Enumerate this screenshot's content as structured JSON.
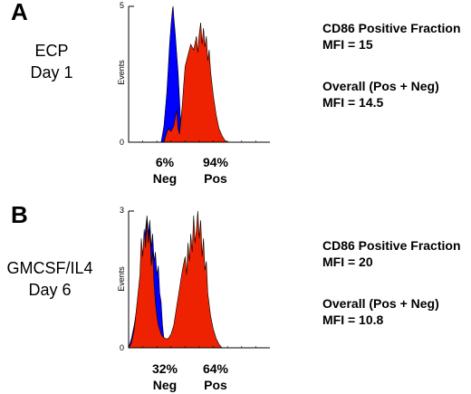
{
  "panels": [
    {
      "letter": "A",
      "sample_line1": "ECP",
      "sample_line2": "Day 1",
      "neg_pct": "6%",
      "neg_label": "Neg",
      "pos_pct": "94%",
      "pos_label": "Pos",
      "stat1_title": "CD86 Positive Fraction",
      "stat1_value": "MFI = 15",
      "stat2_title": "Overall (Pos + Neg)",
      "stat2_value": "MFI = 14.5"
    },
    {
      "letter": "B",
      "sample_line1": "GMCSF/IL4",
      "sample_line2": "Day 6",
      "neg_pct": "32%",
      "neg_label": "Neg",
      "pos_pct": "64%",
      "pos_label": "Pos",
      "stat1_title": "CD86 Positive Fraction",
      "stat1_value": "MFI = 20",
      "stat2_title": "Overall (Pos + Neg)",
      "stat2_value": "MFI = 10.8"
    }
  ],
  "chart_data": [
    {
      "type": "area",
      "ylabel": "Events",
      "yticks": [
        "0",
        "5"
      ],
      "ylim": [
        0,
        5
      ],
      "xlim": [
        0,
        100
      ],
      "series": [
        {
          "color": "#0000ff",
          "points": [
            [
              23,
              0
            ],
            [
              25,
              0.6
            ],
            [
              27,
              1.8
            ],
            [
              28,
              2.7
            ],
            [
              29,
              3.6
            ],
            [
              30,
              4.3
            ],
            [
              31,
              4.9
            ],
            [
              31.5,
              5
            ],
            [
              32,
              4.6
            ],
            [
              33,
              4.0
            ],
            [
              34,
              3.3
            ],
            [
              35,
              2.6
            ],
            [
              36,
              1.6
            ],
            [
              37,
              0.5
            ],
            [
              37.5,
              0
            ]
          ]
        },
        {
          "color": "#ee2200",
          "points": [
            [
              25,
              0
            ],
            [
              26,
              0.2
            ],
            [
              28,
              0.5
            ],
            [
              30,
              0.4
            ],
            [
              32,
              0.6
            ],
            [
              34,
              1.2
            ],
            [
              35,
              0.5
            ],
            [
              36,
              0.3
            ],
            [
              37,
              0.8
            ],
            [
              38,
              1.4
            ],
            [
              39,
              2.1
            ],
            [
              40,
              2.8
            ],
            [
              42,
              3.2
            ],
            [
              44,
              3.6
            ],
            [
              46,
              3.4
            ],
            [
              48,
              3.9
            ],
            [
              49,
              3.3
            ],
            [
              50,
              4.0
            ],
            [
              51,
              4.4
            ],
            [
              52,
              3.6
            ],
            [
              53,
              4.2
            ],
            [
              54,
              3.5
            ],
            [
              55,
              3.9
            ],
            [
              56,
              3.0
            ],
            [
              57,
              3.4
            ],
            [
              58,
              2.6
            ],
            [
              60,
              1.7
            ],
            [
              62,
              1.0
            ],
            [
              64,
              0.5
            ],
            [
              66,
              0.25
            ],
            [
              68,
              0.08
            ],
            [
              70,
              0
            ]
          ]
        }
      ]
    },
    {
      "type": "area",
      "ylabel": "Events",
      "yticks": [
        "0",
        "3"
      ],
      "ylim": [
        0,
        3
      ],
      "xlim": [
        0,
        100
      ],
      "series": [
        {
          "color": "#0000ff",
          "points": [
            [
              0,
              0
            ],
            [
              2,
              0.2
            ],
            [
              4,
              0.5
            ],
            [
              6,
              0.9
            ],
            [
              8,
              1.4
            ],
            [
              10,
              2.0
            ],
            [
              12,
              2.6
            ],
            [
              13,
              2.9
            ],
            [
              14,
              2.5
            ],
            [
              15,
              2.8
            ],
            [
              16,
              2.2
            ],
            [
              17,
              2.5
            ],
            [
              18,
              1.9
            ],
            [
              19,
              2.1
            ],
            [
              20,
              1.6
            ],
            [
              21,
              1.8
            ],
            [
              22,
              1.2
            ],
            [
              23,
              1.0
            ],
            [
              24,
              0.5
            ],
            [
              25,
              0.2
            ],
            [
              26,
              0
            ]
          ]
        },
        {
          "color": "#ee2200",
          "points": [
            [
              0,
              0
            ],
            [
              2,
              0.1
            ],
            [
              4,
              0.4
            ],
            [
              6,
              1.0
            ],
            [
              8,
              1.6
            ],
            [
              9,
              2.4
            ],
            [
              10,
              2.0
            ],
            [
              11,
              2.6
            ],
            [
              12,
              2.2
            ],
            [
              13,
              2.8
            ],
            [
              14,
              2.3
            ],
            [
              15,
              2.6
            ],
            [
              16,
              1.8
            ],
            [
              17,
              2.1
            ],
            [
              18,
              1.4
            ],
            [
              19,
              1.0
            ],
            [
              20,
              0.7
            ],
            [
              21,
              0.5
            ],
            [
              22,
              0.4
            ],
            [
              23,
              0.3
            ],
            [
              24,
              0.25
            ],
            [
              26,
              0.2
            ],
            [
              28,
              0.2
            ],
            [
              30,
              0.3
            ],
            [
              32,
              0.5
            ],
            [
              34,
              0.9
            ],
            [
              36,
              1.3
            ],
            [
              38,
              1.7
            ],
            [
              40,
              2.0
            ],
            [
              41,
              1.6
            ],
            [
              42,
              2.3
            ],
            [
              43,
              1.9
            ],
            [
              44,
              2.5
            ],
            [
              45,
              2.1
            ],
            [
              46,
              2.9
            ],
            [
              47,
              2.3
            ],
            [
              48,
              2.6
            ],
            [
              49,
              3.0
            ],
            [
              50,
              2.4
            ],
            [
              51,
              2.8
            ],
            [
              52,
              2.0
            ],
            [
              53,
              2.4
            ],
            [
              54,
              1.7
            ],
            [
              55,
              1.9
            ],
            [
              56,
              1.2
            ],
            [
              58,
              0.7
            ],
            [
              60,
              0.4
            ],
            [
              62,
              0.2
            ],
            [
              64,
              0.08
            ],
            [
              66,
              0
            ]
          ]
        }
      ]
    }
  ]
}
